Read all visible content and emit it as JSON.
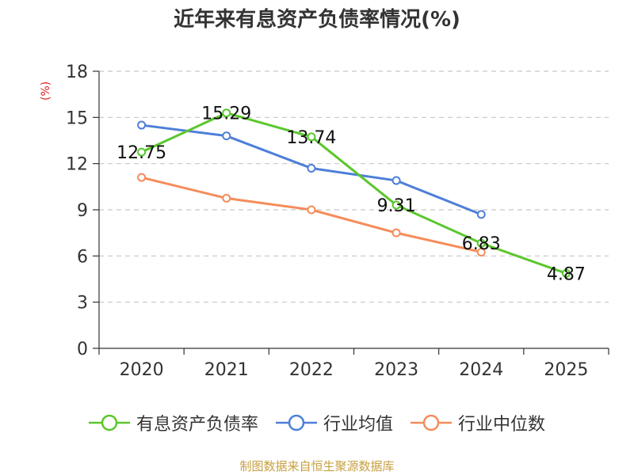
{
  "chart_data": {
    "type": "line",
    "title": "近年来有息资产负债率情况(%)",
    "ylabel": "(%)",
    "xlabel": "",
    "categories": [
      "2020",
      "2021",
      "2022",
      "2023",
      "2024",
      "2025"
    ],
    "ylim": [
      0,
      18
    ],
    "yticks": [
      0,
      3,
      6,
      9,
      12,
      15,
      18
    ],
    "grid": "horizontal-dashed",
    "legend_position": "bottom",
    "series": [
      {
        "name": "有息资产负债率",
        "color": "#5ac72c",
        "values": [
          12.75,
          15.29,
          13.74,
          9.31,
          6.83,
          4.87
        ],
        "labels": [
          "12.75",
          "15.29",
          "13.74",
          "9.31",
          "6.83",
          "4.87"
        ]
      },
      {
        "name": "行业均值",
        "color": "#4e7fd8",
        "values": [
          14.5,
          13.8,
          11.7,
          10.9,
          8.7,
          null
        ]
      },
      {
        "name": "行业中位数",
        "color": "#f58c5a",
        "values": [
          11.1,
          9.75,
          9.0,
          7.5,
          6.25,
          null
        ]
      }
    ]
  },
  "source": "制图数据来自恒生聚源数据库"
}
